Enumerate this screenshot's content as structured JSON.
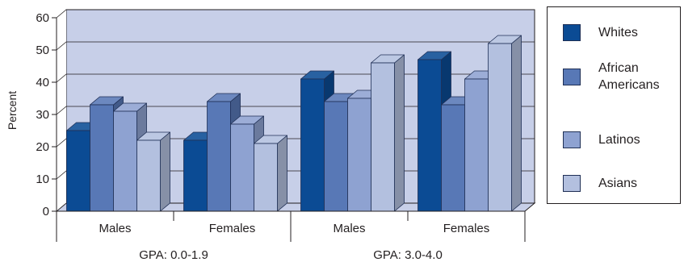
{
  "chart_data": {
    "type": "bar",
    "ylabel": "Percent",
    "ylim": [
      0,
      60
    ],
    "yticks": [
      "0",
      "10",
      "20",
      "30",
      "40",
      "50",
      "60"
    ],
    "groups": [
      "GPA: 0.0-1.9",
      "GPA: 3.0-4.0"
    ],
    "categories": [
      "Males",
      "Females",
      "Males",
      "Females"
    ],
    "category_group": [
      0,
      0,
      1,
      1
    ],
    "series": [
      {
        "name": "Whites",
        "values": [
          25,
          22,
          41,
          47
        ],
        "color": "#0b4b94"
      },
      {
        "name": "African Americans",
        "values": [
          33,
          34,
          34,
          33
        ],
        "color": "#5878b6"
      },
      {
        "name": "Latinos",
        "values": [
          31,
          27,
          35,
          41
        ],
        "color": "#8ea2d1"
      },
      {
        "name": "Asians",
        "values": [
          22,
          21,
          46,
          52
        ],
        "color": "#b3c0df"
      }
    ],
    "plot_background": "#c7cfe8",
    "grid": true,
    "legend_position": "right"
  },
  "legend": {
    "items": [
      {
        "label": "Whites",
        "color": "#0b4b94"
      },
      {
        "label": "African\nAmericans",
        "color": "#5878b6"
      },
      {
        "label": "Latinos",
        "color": "#8ea2d1"
      },
      {
        "label": "Asians",
        "color": "#b3c0df"
      }
    ]
  }
}
